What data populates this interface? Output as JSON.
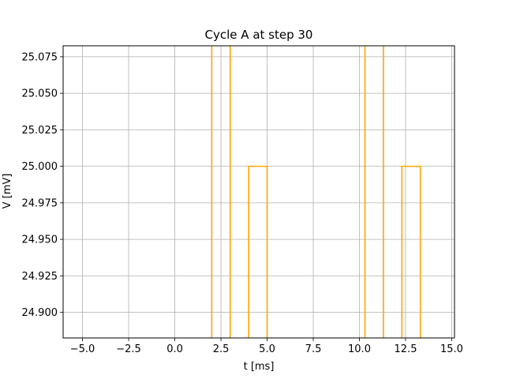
{
  "chart_data": {
    "type": "line",
    "title": "Cycle A at step 30",
    "xlabel": "t  [ms]",
    "ylabel": "V  [mV]",
    "xlim": [
      -6.05,
      15.15
    ],
    "ylim": [
      24.8825,
      25.0825
    ],
    "xticks": [
      -5.0,
      -2.5,
      0.0,
      2.5,
      5.0,
      7.5,
      10.0,
      12.5,
      15.0
    ],
    "xtick_labels": [
      "−5.0",
      "−2.5",
      "0.0",
      "2.5",
      "5.0",
      "7.5",
      "10.0",
      "12.5",
      "15.0"
    ],
    "yticks": [
      24.9,
      24.925,
      24.95,
      24.975,
      25.0,
      25.025,
      25.05,
      25.075
    ],
    "ytick_labels": [
      "24.900",
      "24.925",
      "24.950",
      "24.975",
      "25.000",
      "25.025",
      "25.050",
      "25.075"
    ],
    "grid": true,
    "color": "#ffa500",
    "series": [
      {
        "x": [
          2.0,
          2.0,
          3.0,
          3.0,
          4.0,
          4.0,
          5.0,
          5.0,
          10.3,
          10.3,
          11.3,
          11.3,
          12.3,
          12.3,
          13.3,
          13.3
        ],
        "y": [
          24.85,
          25.1,
          25.1,
          24.85,
          24.85,
          25.0,
          25.0,
          24.85,
          24.85,
          25.1,
          25.1,
          24.85,
          24.85,
          25.0,
          25.0,
          24.85
        ]
      }
    ]
  }
}
